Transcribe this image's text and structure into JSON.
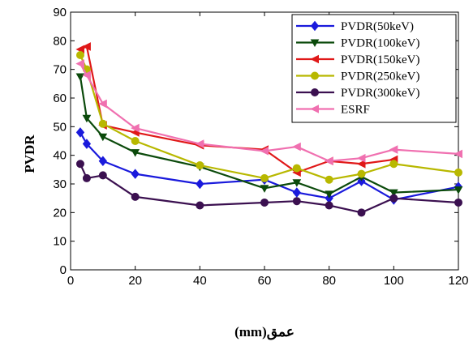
{
  "chart_data": {
    "type": "line",
    "title": "",
    "xlabel": "عمق(mm)",
    "ylabel": "PVDR",
    "xlim": [
      0,
      120
    ],
    "ylim": [
      0,
      90
    ],
    "xticks": [
      0,
      20,
      40,
      60,
      80,
      100,
      120
    ],
    "yticks": [
      0,
      10,
      20,
      30,
      40,
      50,
      60,
      70,
      80,
      90
    ],
    "grid": false,
    "legend_position": "top-right",
    "series": [
      {
        "name": "PVDR(50keV)",
        "color": "#1a1adc",
        "marker": "diamond",
        "points": [
          [
            3,
            48
          ],
          [
            5,
            44
          ],
          [
            10,
            38
          ],
          [
            20,
            33.5
          ],
          [
            40,
            30
          ],
          [
            60,
            31.5
          ],
          [
            70,
            27
          ],
          [
            80,
            25
          ],
          [
            90,
            31
          ],
          [
            100,
            24.5
          ],
          [
            120,
            29
          ]
        ]
      },
      {
        "name": "PVDR(100keV)",
        "color": "#0b4a0b",
        "marker": "triangle-down",
        "points": [
          [
            3,
            67.5
          ],
          [
            5,
            53
          ],
          [
            10,
            46.5
          ],
          [
            20,
            41
          ],
          [
            40,
            36
          ],
          [
            60,
            28.5
          ],
          [
            70,
            30.5
          ],
          [
            80,
            26.5
          ],
          [
            90,
            32.5
          ],
          [
            100,
            27
          ],
          [
            120,
            28
          ]
        ]
      },
      {
        "name": "PVDR(150keV)",
        "color": "#e01818",
        "marker": "triangle-left",
        "points": [
          [
            3,
            77
          ],
          [
            5,
            78
          ],
          [
            10,
            50.5
          ],
          [
            20,
            48
          ],
          [
            40,
            43.5
          ],
          [
            60,
            42
          ],
          [
            70,
            34
          ],
          [
            80,
            38
          ],
          [
            90,
            37
          ],
          [
            100,
            38.5
          ]
        ]
      },
      {
        "name": "PVDR(250keV)",
        "color": "#b8b800",
        "marker": "circle",
        "points": [
          [
            3,
            75
          ],
          [
            5,
            70
          ],
          [
            10,
            51
          ],
          [
            20,
            45
          ],
          [
            40,
            36.5
          ],
          [
            60,
            32
          ],
          [
            70,
            35.5
          ],
          [
            80,
            31.5
          ],
          [
            90,
            33.5
          ],
          [
            100,
            37
          ],
          [
            120,
            34
          ]
        ]
      },
      {
        "name": "PVDR(300keV)",
        "color": "#3b1050",
        "marker": "circle",
        "points": [
          [
            3,
            37
          ],
          [
            5,
            32
          ],
          [
            10,
            33
          ],
          [
            20,
            25.5
          ],
          [
            40,
            22.5
          ],
          [
            60,
            23.5
          ],
          [
            70,
            24
          ],
          [
            80,
            22.5
          ],
          [
            90,
            20
          ],
          [
            100,
            25
          ],
          [
            120,
            23.5
          ]
        ]
      },
      {
        "name": "ESRF",
        "color": "#f070b0",
        "marker": "triangle-left",
        "points": [
          [
            3,
            72
          ],
          [
            5,
            68
          ],
          [
            10,
            58
          ],
          [
            20,
            49.5
          ],
          [
            40,
            44
          ],
          [
            60,
            41.5
          ],
          [
            70,
            43
          ],
          [
            80,
            38
          ],
          [
            90,
            39
          ],
          [
            100,
            42
          ],
          [
            120,
            40.5
          ]
        ]
      }
    ]
  }
}
